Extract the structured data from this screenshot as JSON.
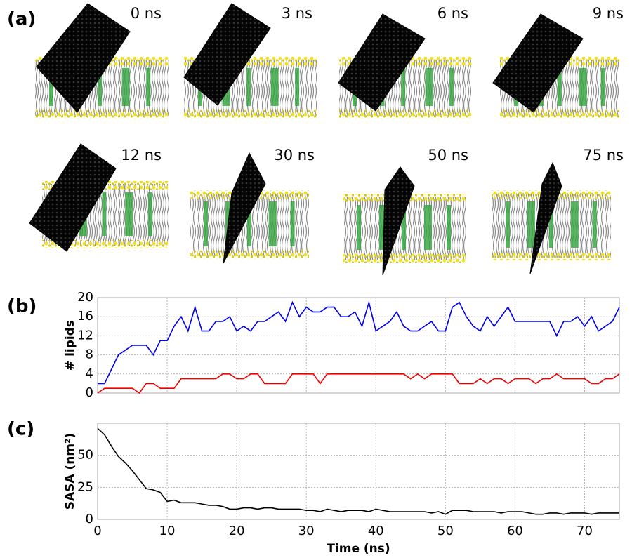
{
  "panel_labels": [
    "(a)",
    "(b)",
    "(c)"
  ],
  "snapshots": [
    "0 ns",
    "3 ns",
    "6 ns",
    "9 ns",
    "12 ns",
    "30 ns",
    "50 ns",
    "75 ns"
  ],
  "chart_data": [
    {
      "type": "line",
      "ylabel": "# lipids",
      "x": [
        0,
        1,
        2,
        3,
        4,
        5,
        6,
        7,
        8,
        9,
        10,
        11,
        12,
        13,
        14,
        15,
        16,
        17,
        18,
        19,
        20,
        21,
        22,
        23,
        24,
        25,
        26,
        27,
        28,
        29,
        30,
        31,
        32,
        33,
        34,
        35,
        36,
        37,
        38,
        39,
        40,
        41,
        42,
        43,
        44,
        45,
        46,
        47,
        48,
        49,
        50,
        51,
        52,
        53,
        54,
        55,
        56,
        57,
        58,
        59,
        60,
        61,
        62,
        63,
        64,
        65,
        66,
        67,
        68,
        69,
        70,
        71,
        72,
        73,
        74,
        75
      ],
      "series": [
        {
          "color": "#0000ee",
          "values": [
            2,
            2,
            5,
            8,
            9,
            10,
            10,
            10,
            8,
            11,
            11,
            14,
            16,
            13,
            18,
            13,
            13,
            15,
            15,
            16,
            13,
            14,
            13,
            15,
            15,
            16,
            17,
            15,
            19,
            16,
            18,
            17,
            17,
            18,
            18,
            16,
            16,
            17,
            14,
            19,
            13,
            14,
            15,
            17,
            14,
            13,
            13,
            14,
            15,
            13,
            13,
            18,
            19,
            16,
            14,
            13,
            16,
            14,
            16,
            18,
            15,
            15,
            15,
            15,
            15,
            15,
            12,
            15,
            15,
            16,
            14,
            16,
            13,
            14,
            15,
            18
          ]
        },
        {
          "color": "#ee0000",
          "values": [
            0,
            1,
            1,
            1,
            1,
            1,
            0,
            2,
            2,
            1,
            1,
            1,
            3,
            3,
            3,
            3,
            3,
            3,
            4,
            4,
            3,
            3,
            4,
            4,
            2,
            2,
            2,
            2,
            4,
            4,
            4,
            4,
            2,
            4,
            4,
            4,
            4,
            4,
            4,
            4,
            4,
            4,
            4,
            4,
            4,
            3,
            4,
            3,
            4,
            4,
            4,
            4,
            2,
            2,
            2,
            3,
            2,
            3,
            3,
            2,
            3,
            3,
            3,
            2,
            3,
            3,
            4,
            3,
            3,
            3,
            3,
            2,
            2,
            3,
            3,
            4
          ]
        }
      ],
      "xlim": [
        0,
        75
      ],
      "xticks": [
        0,
        10,
        20,
        30,
        40,
        50,
        60,
        70
      ],
      "show_xtick_labels": false,
      "ylim": [
        0,
        20
      ],
      "yticks": [
        0,
        4,
        8,
        12,
        16,
        20
      ],
      "grid": true
    },
    {
      "type": "line",
      "ylabel": "SASA (nm²)",
      "xlabel": "Time (ns)",
      "x": [
        0,
        1,
        2,
        3,
        4,
        5,
        6,
        7,
        8,
        9,
        10,
        11,
        12,
        13,
        14,
        15,
        16,
        17,
        18,
        19,
        20,
        21,
        22,
        23,
        24,
        25,
        26,
        27,
        28,
        29,
        30,
        31,
        32,
        33,
        34,
        35,
        36,
        37,
        38,
        39,
        40,
        41,
        42,
        43,
        44,
        45,
        46,
        47,
        48,
        49,
        50,
        51,
        52,
        53,
        54,
        55,
        56,
        57,
        58,
        59,
        60,
        61,
        62,
        63,
        64,
        65,
        66,
        67,
        68,
        69,
        70,
        71,
        72,
        73,
        74,
        75
      ],
      "values": [
        71,
        66,
        57,
        49,
        44,
        38,
        31,
        24,
        23,
        21,
        14,
        15,
        13,
        13,
        13,
        12,
        11,
        11,
        10,
        8,
        8,
        9,
        9,
        8,
        9,
        9,
        8,
        8,
        8,
        8,
        7,
        7,
        6,
        8,
        7,
        6,
        7,
        7,
        7,
        6,
        8,
        7,
        6,
        6,
        6,
        6,
        6,
        6,
        5,
        6,
        4,
        7,
        7,
        7,
        6,
        6,
        6,
        6,
        5,
        6,
        6,
        6,
        5,
        4,
        4,
        5,
        5,
        4,
        5,
        5,
        5,
        4,
        5,
        5,
        5,
        5
      ],
      "color": "#000000",
      "xlim": [
        0,
        75
      ],
      "xticks": [
        0,
        10,
        20,
        30,
        40,
        50,
        60,
        70
      ],
      "show_xtick_labels": true,
      "ylim": [
        0,
        75
      ],
      "yticks": [
        0,
        25,
        50
      ],
      "grid": true
    }
  ]
}
